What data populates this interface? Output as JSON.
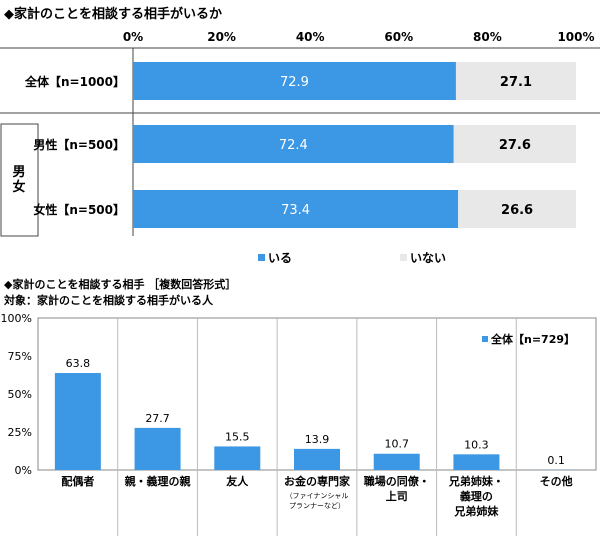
{
  "chart_top": {
    "title": "◆家計のことを相談する相手がいるか",
    "group_label": [
      "男",
      "女"
    ],
    "chart_data": {
      "type": "bar",
      "orientation": "horizontal",
      "stacked": true,
      "categories": [
        "全体【n=1000】",
        "男性【n=500】",
        "女性【n=500】"
      ],
      "series": [
        {
          "name": "いる",
          "values": [
            72.9,
            72.4,
            73.4
          ],
          "color": "#3C97E4"
        },
        {
          "name": "いない",
          "values": [
            27.1,
            27.6,
            26.6
          ],
          "color": "#E8E8E8"
        }
      ],
      "xlim": [
        0,
        100
      ],
      "ticks": [
        "0%",
        "20%",
        "40%",
        "60%",
        "80%",
        "100%"
      ],
      "legend": "bottom"
    }
  },
  "chart_bottom": {
    "title": "◆家計のことを相談する相手 ［複数回答形式］",
    "subtitle": "対象：家計のことを相談する相手がいる人",
    "legend_label": "全体【n=729】",
    "chart_data": {
      "type": "bar",
      "categories": [
        [
          "配偶者"
        ],
        [
          "親・義理の親"
        ],
        [
          "友人"
        ],
        [
          "お金の専門家"
        ],
        [
          "職場の同僚・",
          "上司"
        ],
        [
          "兄弟姉妹・",
          "義理の",
          "兄弟姉妹"
        ],
        [
          "その他"
        ]
      ],
      "category_notes": [
        "",
        "",
        "",
        "（ファイナンシャル",
        "",
        "",
        ""
      ],
      "category_notes2": [
        "",
        "",
        "",
        "プランナーなど）",
        "",
        "",
        ""
      ],
      "values": [
        63.8,
        27.7,
        15.5,
        13.9,
        10.7,
        10.3,
        0.1
      ],
      "series_name": "全体【n=729】",
      "color": "#3C97E4",
      "ylim": [
        0,
        100
      ],
      "yticks": [
        "0%",
        "25%",
        "50%",
        "75%",
        "100%"
      ]
    }
  }
}
